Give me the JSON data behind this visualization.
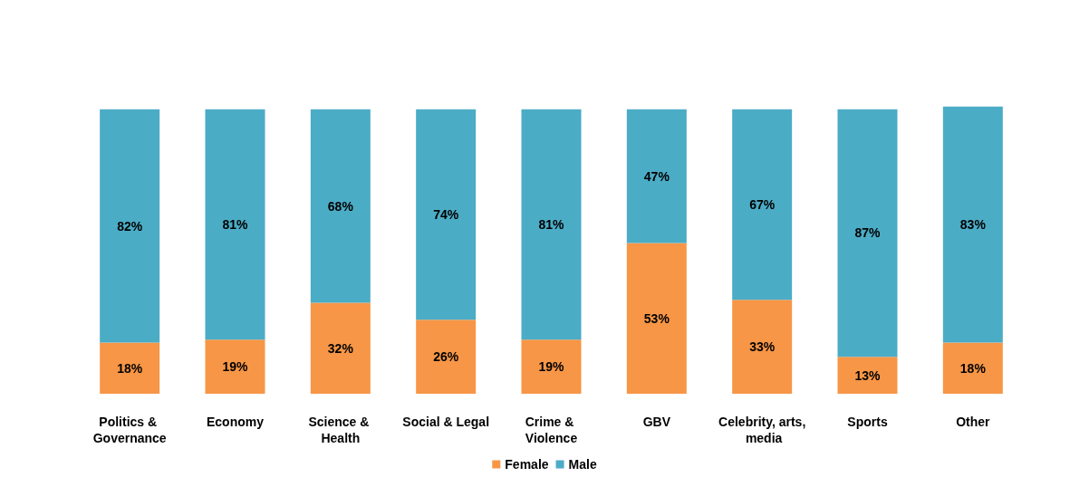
{
  "chart_data": {
    "type": "bar",
    "stacked": true,
    "legend": "bottom",
    "categories": [
      "Politics & Governance",
      "Economy",
      "Science & Health",
      "Social & Legal",
      "Crime & Violence",
      "GBV",
      "Celebrity, arts, media",
      "Sports",
      "Other"
    ],
    "series": [
      {
        "name": "Female",
        "color": "#f79646",
        "values": [
          18,
          19,
          32,
          26,
          19,
          53,
          33,
          13,
          18
        ],
        "value_labels": [
          "18%",
          "19%",
          "32%",
          "26%",
          "19%",
          "53%",
          "33%",
          "13%",
          "18%"
        ]
      },
      {
        "name": "Male",
        "color": "#4bacc6",
        "values": [
          82,
          81,
          68,
          74,
          81,
          47,
          67,
          87,
          83
        ],
        "value_labels": [
          "82%",
          "81%",
          "68%",
          "74%",
          "81%",
          "47%",
          "67%",
          "87%",
          "83%"
        ]
      }
    ]
  }
}
